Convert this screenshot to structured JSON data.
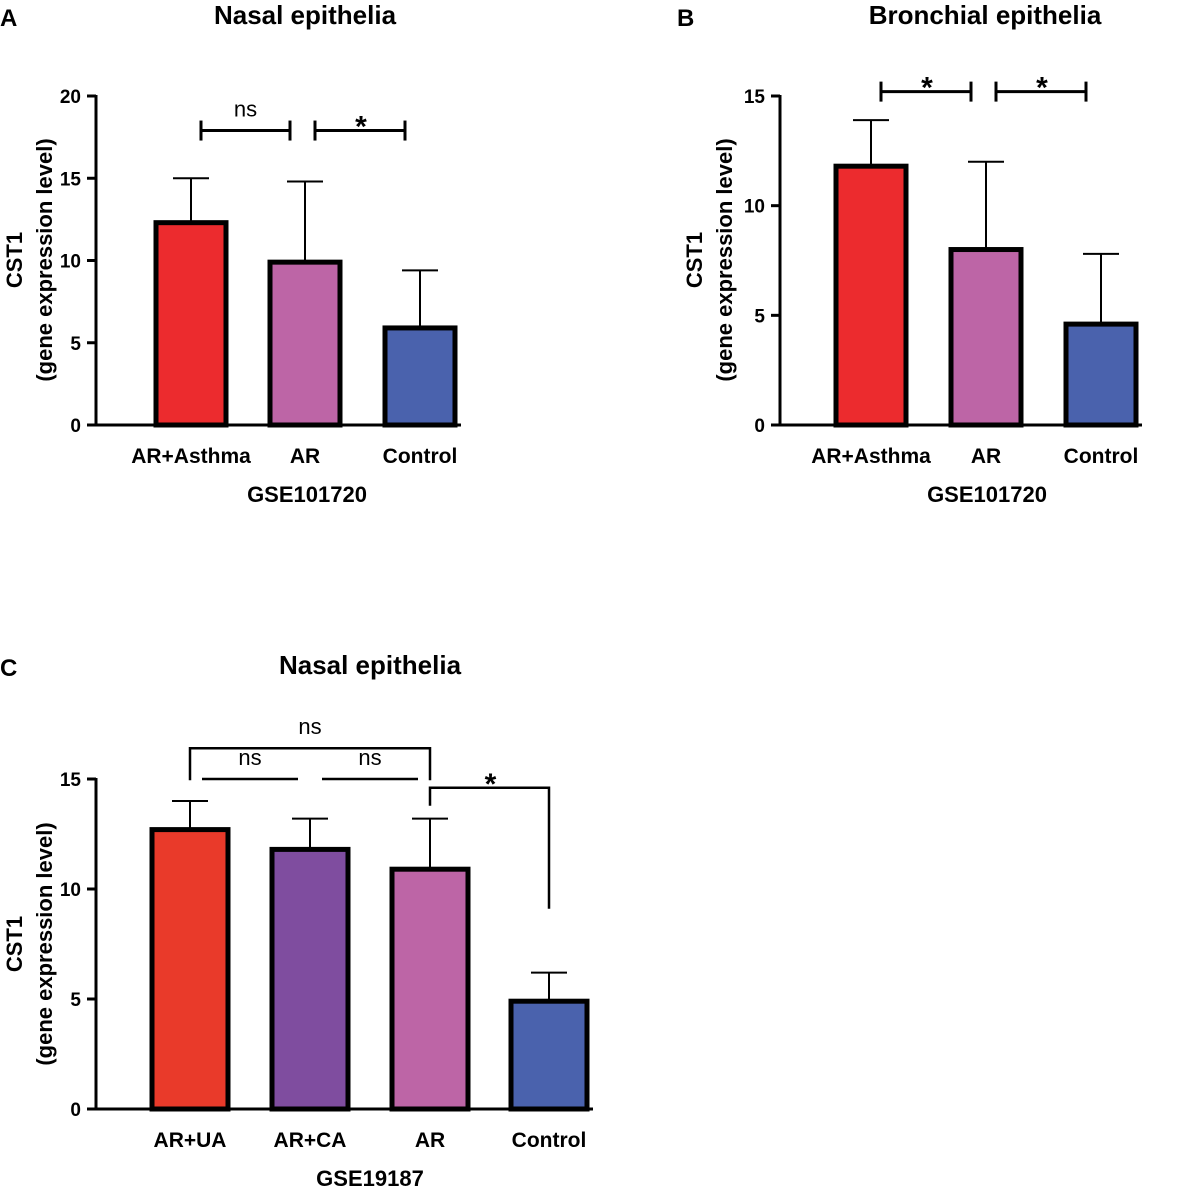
{
  "chart_data": [
    {
      "panel": "A",
      "type": "bar",
      "title": "Nasal epithelia",
      "xlabel": "GSE101720",
      "ylabel_line1": "CST1",
      "ylabel_line2": "(gene expression level)",
      "ylim": [
        0,
        20
      ],
      "yticks": [
        0,
        5,
        10,
        15,
        20
      ],
      "categories": [
        "AR+Asthma",
        "AR",
        "Control"
      ],
      "values": [
        12.3,
        9.9,
        5.9
      ],
      "errors": [
        2.7,
        4.9,
        3.5
      ],
      "colors": [
        "#ec2b2e",
        "#bd65a6",
        "#4a62ad"
      ],
      "comparisons": [
        {
          "from": 0,
          "to": 1,
          "label": "ns",
          "level": 17.9
        },
        {
          "from": 1,
          "to": 2,
          "label": "*",
          "level": 17.9
        }
      ]
    },
    {
      "panel": "B",
      "type": "bar",
      "title": "Bronchial epithelia",
      "xlabel": "GSE101720",
      "ylabel_line1": "CST1",
      "ylabel_line2": "(gene expression level)",
      "ylim": [
        0,
        15
      ],
      "yticks": [
        0,
        5,
        10,
        15
      ],
      "categories": [
        "AR+Asthma",
        "AR",
        "Control"
      ],
      "values": [
        11.8,
        8.0,
        4.6
      ],
      "errors": [
        2.1,
        4.0,
        3.2
      ],
      "colors": [
        "#ec2b2e",
        "#bd65a6",
        "#4a62ad"
      ],
      "comparisons": [
        {
          "from": 0,
          "to": 1,
          "label": "*",
          "level": 15.2
        },
        {
          "from": 1,
          "to": 2,
          "label": "*",
          "level": 15.2
        }
      ]
    },
    {
      "panel": "C",
      "type": "bar",
      "title": "Nasal epithelia",
      "xlabel": "GSE19187",
      "ylabel_line1": "CST1",
      "ylabel_line2": "(gene expression level)",
      "ylim": [
        0,
        15
      ],
      "yticks": [
        0,
        5,
        10,
        15
      ],
      "categories": [
        "AR+UA",
        "AR+CA",
        "AR",
        "Control"
      ],
      "values": [
        12.7,
        11.8,
        10.9,
        4.9
      ],
      "errors": [
        1.3,
        1.4,
        2.3,
        1.3
      ],
      "colors": [
        "#e93a2a",
        "#7f4d9f",
        "#bd65a6",
        "#4a62ad"
      ],
      "comparisons": [
        {
          "style": "bracket",
          "from": 0,
          "to": 2,
          "label": "ns",
          "level": 16.4
        },
        {
          "style": "bar",
          "from": 0,
          "to": 1,
          "label": "ns",
          "level": 15.0
        },
        {
          "style": "bar",
          "from": 1,
          "to": 2,
          "label": "ns",
          "level": 15.0
        },
        {
          "style": "elbow",
          "from": 2,
          "to": 3,
          "label": "*",
          "level": 14.6
        }
      ]
    }
  ]
}
